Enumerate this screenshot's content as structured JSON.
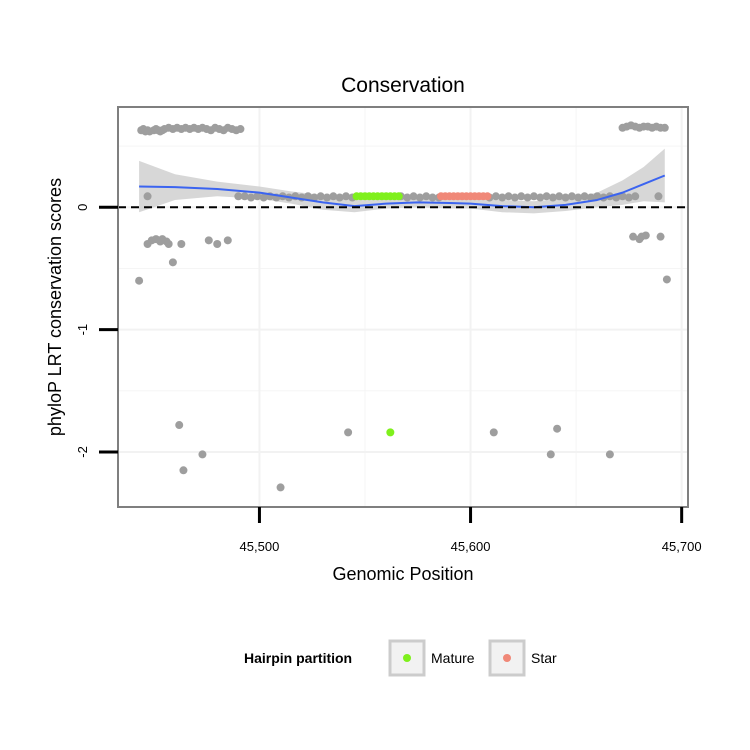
{
  "chart_data": {
    "type": "scatter",
    "title": "Conservation",
    "xlabel": "Genomic Position",
    "ylabel": "phyloP LRT conservation scores",
    "xlim": [
      45433,
      45703
    ],
    "ylim": [
      -2.45,
      0.82
    ],
    "x_ticks": [
      45500,
      45600,
      45700
    ],
    "x_tick_labels": [
      "45,500",
      "45,600",
      "45,700"
    ],
    "y_ticks": [
      -2,
      -1,
      0
    ],
    "y_tick_labels": [
      "-2",
      "-1",
      "0"
    ],
    "grid": true,
    "reference_line": {
      "y": 0,
      "style": "dashed"
    },
    "legend": {
      "title": "Hairpin partition",
      "position": "bottom",
      "entries": [
        {
          "label": "Mature",
          "color": "#7ff01c"
        },
        {
          "label": "Star",
          "color": "#f08878"
        }
      ]
    },
    "colors": {
      "other": "#9e9e9e",
      "mature": "#7ff01c",
      "star": "#f08878",
      "smooth": "#3b64f0",
      "ribbon": "#d0d0d0"
    },
    "series": [
      {
        "name": "Other",
        "color": "#9e9e9e",
        "points": [
          [
            45444,
            0.63
          ],
          [
            45445,
            0.64
          ],
          [
            45446,
            0.62
          ],
          [
            45447,
            0.63
          ],
          [
            45448,
            0.62
          ],
          [
            45450,
            0.63
          ],
          [
            45451,
            0.64
          ],
          [
            45452,
            0.63
          ],
          [
            45453,
            0.62
          ],
          [
            45454,
            0.63
          ],
          [
            45455,
            0.64
          ],
          [
            45457,
            0.65
          ],
          [
            45459,
            0.64
          ],
          [
            45461,
            0.65
          ],
          [
            45463,
            0.64
          ],
          [
            45465,
            0.65
          ],
          [
            45467,
            0.64
          ],
          [
            45469,
            0.65
          ],
          [
            45471,
            0.64
          ],
          [
            45473,
            0.65
          ],
          [
            45475,
            0.64
          ],
          [
            45477,
            0.63
          ],
          [
            45479,
            0.65
          ],
          [
            45481,
            0.64
          ],
          [
            45483,
            0.63
          ],
          [
            45485,
            0.65
          ],
          [
            45487,
            0.64
          ],
          [
            45489,
            0.63
          ],
          [
            45491,
            0.64
          ],
          [
            45672,
            0.65
          ],
          [
            45674,
            0.66
          ],
          [
            45676,
            0.67
          ],
          [
            45678,
            0.66
          ],
          [
            45680,
            0.65
          ],
          [
            45682,
            0.66
          ],
          [
            45684,
            0.66
          ],
          [
            45686,
            0.65
          ],
          [
            45688,
            0.66
          ],
          [
            45690,
            0.65
          ],
          [
            45692,
            0.65
          ],
          [
            45447,
            0.09
          ],
          [
            45490,
            0.09
          ],
          [
            45493,
            0.09
          ],
          [
            45496,
            0.08
          ],
          [
            45499,
            0.09
          ],
          [
            45502,
            0.08
          ],
          [
            45505,
            0.09
          ],
          [
            45508,
            0.08
          ],
          [
            45511,
            0.09
          ],
          [
            45514,
            0.08
          ],
          [
            45517,
            0.09
          ],
          [
            45520,
            0.08
          ],
          [
            45523,
            0.09
          ],
          [
            45526,
            0.08
          ],
          [
            45529,
            0.09
          ],
          [
            45532,
            0.08
          ],
          [
            45535,
            0.09
          ],
          [
            45538,
            0.08
          ],
          [
            45541,
            0.09
          ],
          [
            45544,
            0.08
          ],
          [
            45567,
            0.09
          ],
          [
            45570,
            0.08
          ],
          [
            45573,
            0.09
          ],
          [
            45576,
            0.08
          ],
          [
            45579,
            0.09
          ],
          [
            45582,
            0.08
          ],
          [
            45585,
            0.08
          ],
          [
            45609,
            0.08
          ],
          [
            45612,
            0.09
          ],
          [
            45615,
            0.08
          ],
          [
            45618,
            0.09
          ],
          [
            45621,
            0.08
          ],
          [
            45624,
            0.09
          ],
          [
            45627,
            0.08
          ],
          [
            45630,
            0.09
          ],
          [
            45633,
            0.08
          ],
          [
            45636,
            0.09
          ],
          [
            45639,
            0.08
          ],
          [
            45642,
            0.09
          ],
          [
            45645,
            0.08
          ],
          [
            45648,
            0.09
          ],
          [
            45651,
            0.08
          ],
          [
            45654,
            0.09
          ],
          [
            45657,
            0.08
          ],
          [
            45660,
            0.09
          ],
          [
            45663,
            0.08
          ],
          [
            45666,
            0.09
          ],
          [
            45669,
            0.08
          ],
          [
            45672,
            0.09
          ],
          [
            45675,
            0.08
          ],
          [
            45678,
            0.09
          ],
          [
            45689,
            0.09
          ],
          [
            45447,
            -0.3
          ],
          [
            45449,
            -0.27
          ],
          [
            45451,
            -0.26
          ],
          [
            45453,
            -0.28
          ],
          [
            45454,
            -0.26
          ],
          [
            45456,
            -0.28
          ],
          [
            45457,
            -0.3
          ],
          [
            45463,
            -0.3
          ],
          [
            45476,
            -0.27
          ],
          [
            45480,
            -0.3
          ],
          [
            45485,
            -0.27
          ],
          [
            45443,
            -0.6
          ],
          [
            45459,
            -0.45
          ],
          [
            45677,
            -0.24
          ],
          [
            45680,
            -0.26
          ],
          [
            45681,
            -0.24
          ],
          [
            45683,
            -0.23
          ],
          [
            45690,
            -0.24
          ],
          [
            45693,
            -0.59
          ],
          [
            45462,
            -1.78
          ],
          [
            45464,
            -2.15
          ],
          [
            45473,
            -2.02
          ],
          [
            45510,
            -2.29
          ],
          [
            45542,
            -1.84
          ],
          [
            45611,
            -1.84
          ],
          [
            45638,
            -2.02
          ],
          [
            45641,
            -1.81
          ],
          [
            45666,
            -2.02
          ]
        ]
      },
      {
        "name": "Mature",
        "color": "#7ff01c",
        "points": [
          [
            45546,
            0.09
          ],
          [
            45548,
            0.09
          ],
          [
            45550,
            0.09
          ],
          [
            45552,
            0.09
          ],
          [
            45554,
            0.09
          ],
          [
            45556,
            0.09
          ],
          [
            45558,
            0.09
          ],
          [
            45560,
            0.09
          ],
          [
            45562,
            0.09
          ],
          [
            45564,
            0.09
          ],
          [
            45566,
            0.09
          ],
          [
            45562,
            -1.84
          ]
        ]
      },
      {
        "name": "Star",
        "color": "#f08878",
        "points": [
          [
            45586,
            0.09
          ],
          [
            45588,
            0.09
          ],
          [
            45590,
            0.09
          ],
          [
            45592,
            0.09
          ],
          [
            45594,
            0.09
          ],
          [
            45596,
            0.09
          ],
          [
            45598,
            0.09
          ],
          [
            45600,
            0.09
          ],
          [
            45602,
            0.09
          ],
          [
            45604,
            0.09
          ],
          [
            45606,
            0.09
          ],
          [
            45608,
            0.09
          ]
        ]
      }
    ],
    "smooth": {
      "x": [
        45443,
        45460,
        45480,
        45500,
        45515,
        45530,
        45545,
        45560,
        45575,
        45590,
        45600,
        45615,
        45630,
        45645,
        45660,
        45672,
        45682,
        45692
      ],
      "y": [
        0.17,
        0.165,
        0.15,
        0.12,
        0.08,
        0.04,
        0.01,
        0.03,
        0.04,
        0.035,
        0.03,
        0.01,
        0.0,
        0.02,
        0.06,
        0.12,
        0.19,
        0.26
      ],
      "upper": [
        0.38,
        0.27,
        0.21,
        0.17,
        0.13,
        0.1,
        0.06,
        0.07,
        0.08,
        0.08,
        0.07,
        0.06,
        0.05,
        0.07,
        0.12,
        0.22,
        0.33,
        0.48
      ],
      "lower": [
        -0.04,
        0.06,
        0.09,
        0.07,
        0.03,
        -0.02,
        -0.04,
        -0.01,
        0.0,
        -0.01,
        -0.01,
        -0.04,
        -0.05,
        -0.03,
        0.0,
        0.02,
        0.05,
        0.04
      ]
    }
  }
}
